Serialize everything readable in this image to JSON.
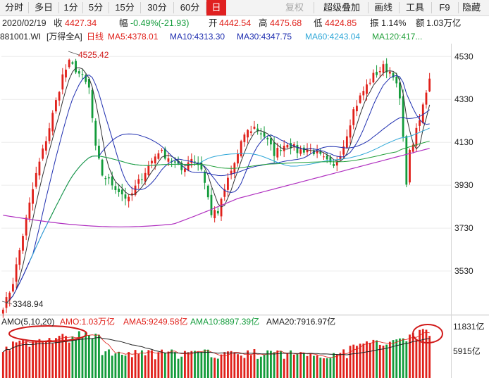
{
  "toolbar": {
    "items": [
      "分时",
      "多日",
      "1分",
      "5分",
      "15分",
      "30分",
      "60分",
      "日",
      "复权",
      "超级叠加",
      "画线",
      "工具",
      "F9",
      "隐藏"
    ],
    "active": "日"
  },
  "info": {
    "date": "2020/02/19",
    "close_label": "收",
    "close": "4427.34",
    "change_label": "幅",
    "change": "-0.49%(-21.93)",
    "open_label": "开",
    "open": "4442.54",
    "high_label": "高",
    "high": "4475.68",
    "low_label": "低",
    "low": "4424.85",
    "amplitude_label": "振",
    "amplitude": "1.14%",
    "amount_label": "额",
    "amount": "1.03万亿"
  },
  "ma_bar": {
    "code": "881001.WI",
    "index_name": "[万得全A]",
    "period": "日线",
    "ma5": "MA5:4378.01",
    "ma10": "MA10:4313.30",
    "ma30": "MA30:4347.75",
    "ma60": "MA60:4243.04",
    "ma120": "MA120:417..."
  },
  "amo_bar": {
    "title": "AMO(5,10,20)",
    "amo": "AMO:1.03万亿",
    "ama5": "AMA5:9249.58亿",
    "ama10": "AMA10:8897.39亿",
    "ama20": "AMA20:7916.97亿"
  },
  "colors": {
    "up": "#e0201a",
    "down": "#129b3a",
    "ma5": "#333333",
    "ma10": "#1f2fb0",
    "ma30": "#1f2fb0",
    "ma60": "#2fa7d8",
    "ma120": "#22a03a",
    "ma250": "#b030c0",
    "annotation": "#d01818"
  },
  "chart_data": {
    "type": "candlestick",
    "y_ticks": [
      "4530",
      "4330",
      "4130",
      "3930",
      "3730",
      "3530"
    ],
    "ylim": [
      3330,
      4590
    ],
    "volume_ticks": [
      "11831亿",
      "5915亿"
    ],
    "volume_ylim": [
      0,
      12600
    ],
    "annotations": {
      "peak_label": "4525.42",
      "trough_label": "3348.94"
    },
    "anchors": [
      {
        "i": 0,
        "c": 3350
      },
      {
        "i": 3,
        "c": 3480
      },
      {
        "i": 6,
        "c": 3700
      },
      {
        "i": 10,
        "c": 3980
      },
      {
        "i": 14,
        "c": 4200
      },
      {
        "i": 18,
        "c": 4440
      },
      {
        "i": 20,
        "c": 4500
      },
      {
        "i": 22,
        "c": 4470
      },
      {
        "i": 24,
        "c": 4430
      },
      {
        "i": 26,
        "c": 4380
      },
      {
        "i": 28,
        "c": 4100
      },
      {
        "i": 30,
        "c": 3980
      },
      {
        "i": 34,
        "c": 3920
      },
      {
        "i": 38,
        "c": 3860
      },
      {
        "i": 40,
        "c": 3920
      },
      {
        "i": 44,
        "c": 4020
      },
      {
        "i": 47,
        "c": 4090
      },
      {
        "i": 50,
        "c": 4060
      },
      {
        "i": 54,
        "c": 4000
      },
      {
        "i": 57,
        "c": 4060
      },
      {
        "i": 60,
        "c": 4010
      },
      {
        "i": 63,
        "c": 3800
      },
      {
        "i": 65,
        "c": 3800
      },
      {
        "i": 68,
        "c": 3960
      },
      {
        "i": 71,
        "c": 4070
      },
      {
        "i": 73,
        "c": 4170
      },
      {
        "i": 76,
        "c": 4200
      },
      {
        "i": 79,
        "c": 4160
      },
      {
        "i": 82,
        "c": 4080
      },
      {
        "i": 86,
        "c": 4130
      },
      {
        "i": 89,
        "c": 4090
      },
      {
        "i": 93,
        "c": 4100
      },
      {
        "i": 97,
        "c": 4050
      },
      {
        "i": 100,
        "c": 4010
      },
      {
        "i": 103,
        "c": 4120
      },
      {
        "i": 106,
        "c": 4280
      },
      {
        "i": 109,
        "c": 4370
      },
      {
        "i": 112,
        "c": 4440
      },
      {
        "i": 115,
        "c": 4480
      },
      {
        "i": 118,
        "c": 4450
      },
      {
        "i": 120,
        "c": 4330
      },
      {
        "i": 122,
        "c": 3950
      },
      {
        "i": 123,
        "c": 4080
      },
      {
        "i": 126,
        "c": 4230
      },
      {
        "i": 128,
        "c": 4370
      },
      {
        "i": 129,
        "c": 4427
      }
    ]
  }
}
